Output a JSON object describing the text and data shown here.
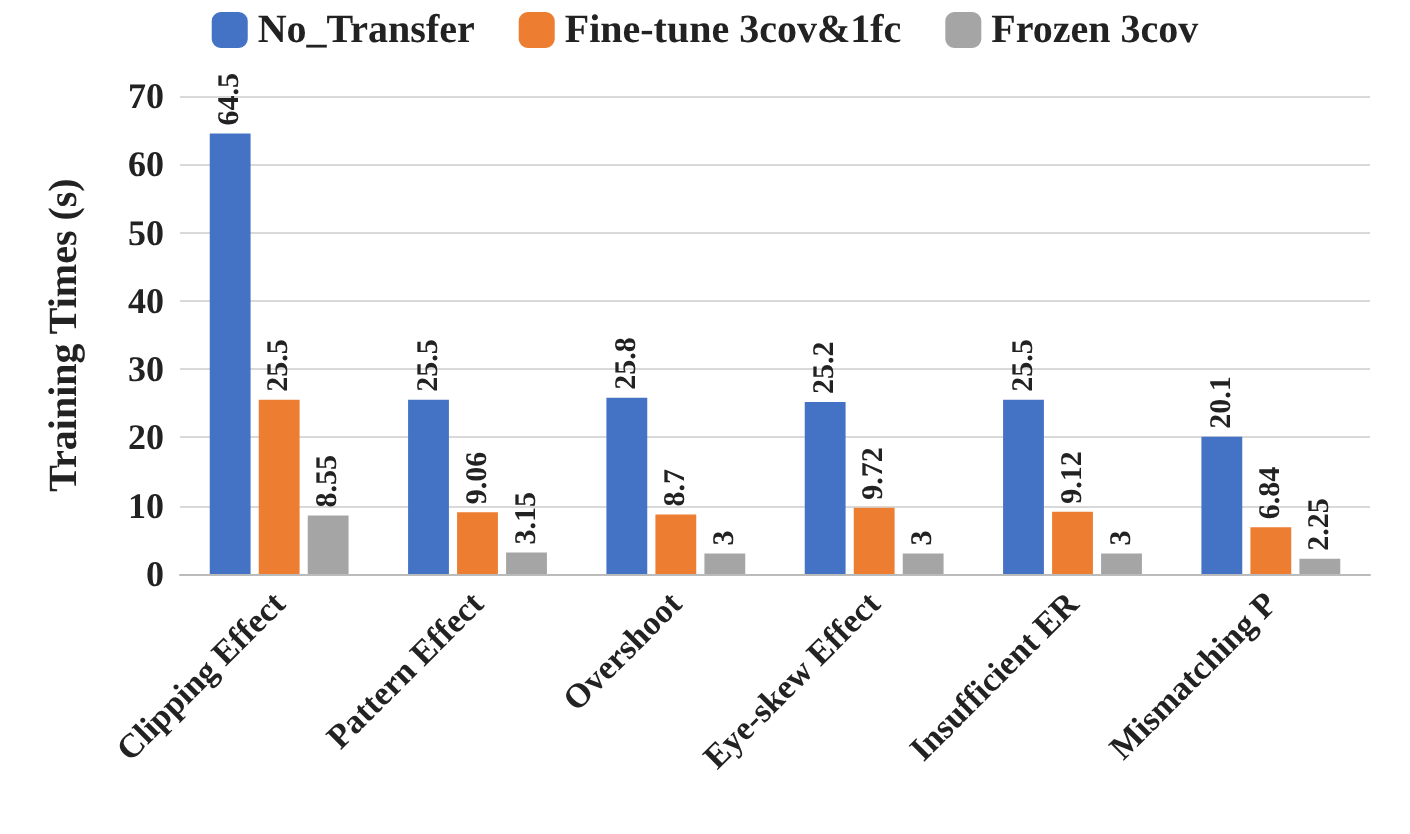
{
  "chart_data": {
    "type": "bar",
    "ylabel": "Training Times (s)",
    "categories": [
      "Clipping Effect",
      "Pattern Effect",
      "Overshoot",
      "Eye-skew Effect",
      "Insufficient ER",
      "Mismatching P"
    ],
    "series": [
      {
        "name": "No_Transfer",
        "color": "#4472c4",
        "values": [
          64.5,
          25.5,
          25.8,
          25.2,
          25.5,
          20.1
        ]
      },
      {
        "name": "Fine-tune 3cov&1fc",
        "color": "#ed7d31",
        "values": [
          25.5,
          9.06,
          8.7,
          9.72,
          9.12,
          6.84
        ]
      },
      {
        "name": "Frozen 3cov",
        "color": "#a5a5a5",
        "values": [
          8.55,
          3.15,
          3,
          3,
          3,
          2.25
        ]
      }
    ],
    "ylim": [
      0,
      70
    ],
    "yticks": [
      0,
      10,
      20,
      30,
      40,
      50,
      60,
      70
    ],
    "grid": "y",
    "legend": "top",
    "data_labels": true
  }
}
